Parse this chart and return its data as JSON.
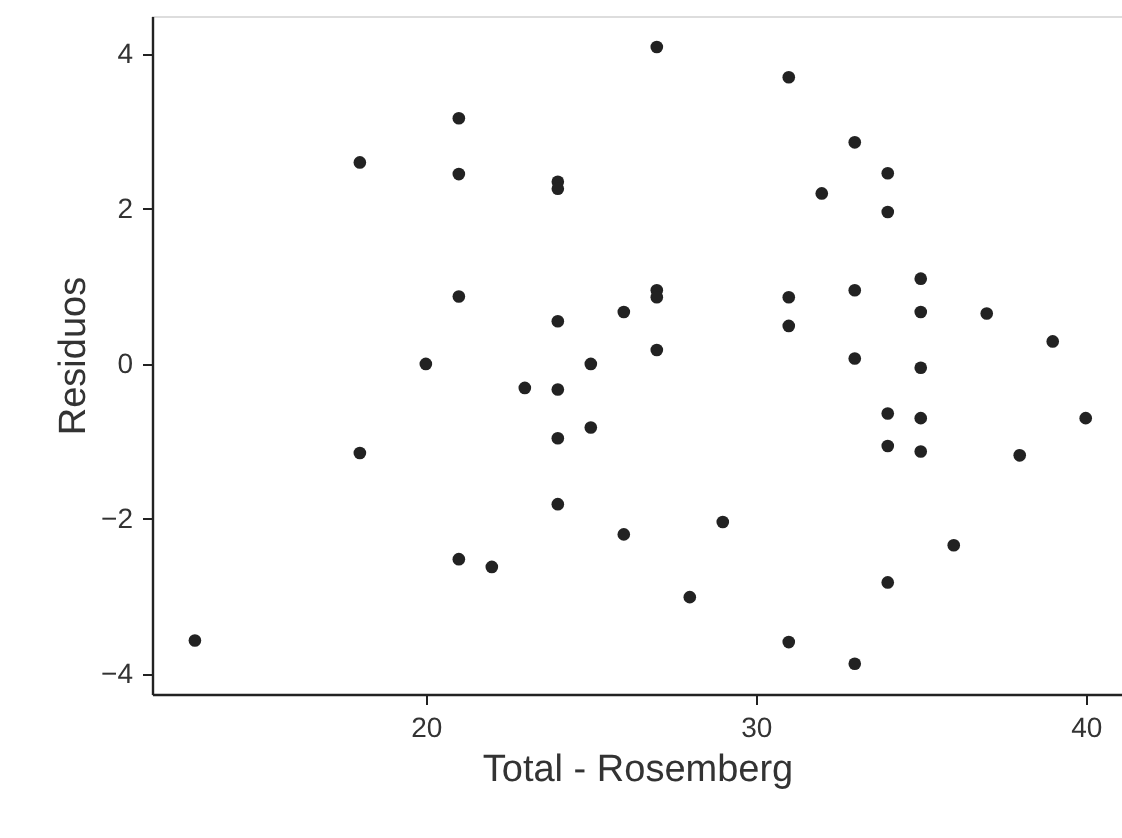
{
  "chart_data": {
    "type": "scatter",
    "xlabel": "Total - Rosemberg",
    "ylabel": "Residuos",
    "x": [
      13,
      18,
      18,
      20,
      21,
      21,
      21,
      21,
      22,
      23,
      24,
      24,
      24,
      24,
      24,
      24,
      25,
      25,
      26,
      26,
      27,
      27,
      27,
      27,
      28,
      29,
      31,
      31,
      31,
      31,
      32,
      33,
      33,
      33,
      33,
      34,
      34,
      34,
      34,
      34,
      35,
      35,
      35,
      35,
      35,
      36,
      37,
      38,
      39,
      40
    ],
    "series": [
      {
        "color": "#222222",
        "values": [
          -3.57,
          2.6,
          -1.15,
          0,
          3.17,
          2.45,
          0.87,
          -2.52,
          -2.62,
          -0.31,
          2.35,
          2.26,
          0.55,
          -0.33,
          -0.96,
          -1.81,
          0,
          -0.82,
          0.67,
          -2.2,
          4.09,
          0.95,
          0.86,
          0.18,
          -3.01,
          -2.04,
          3.7,
          0.86,
          0.49,
          -3.59,
          2.2,
          2.86,
          0.95,
          0.07,
          -3.87,
          2.46,
          1.96,
          -0.64,
          -1.06,
          -2.82,
          1.1,
          0.67,
          -0.05,
          -0.7,
          -1.13,
          -2.34,
          0.65,
          -1.18,
          0.29,
          -0.7
        ]
      }
    ],
    "xlim": [
      11.7,
      41.1
    ],
    "ylim": [
      -4.26,
      4.49
    ],
    "xticks": [
      20,
      30,
      40
    ],
    "yticks": [
      -4,
      -2,
      0,
      2,
      4
    ],
    "grid": false,
    "marker": "circle"
  }
}
